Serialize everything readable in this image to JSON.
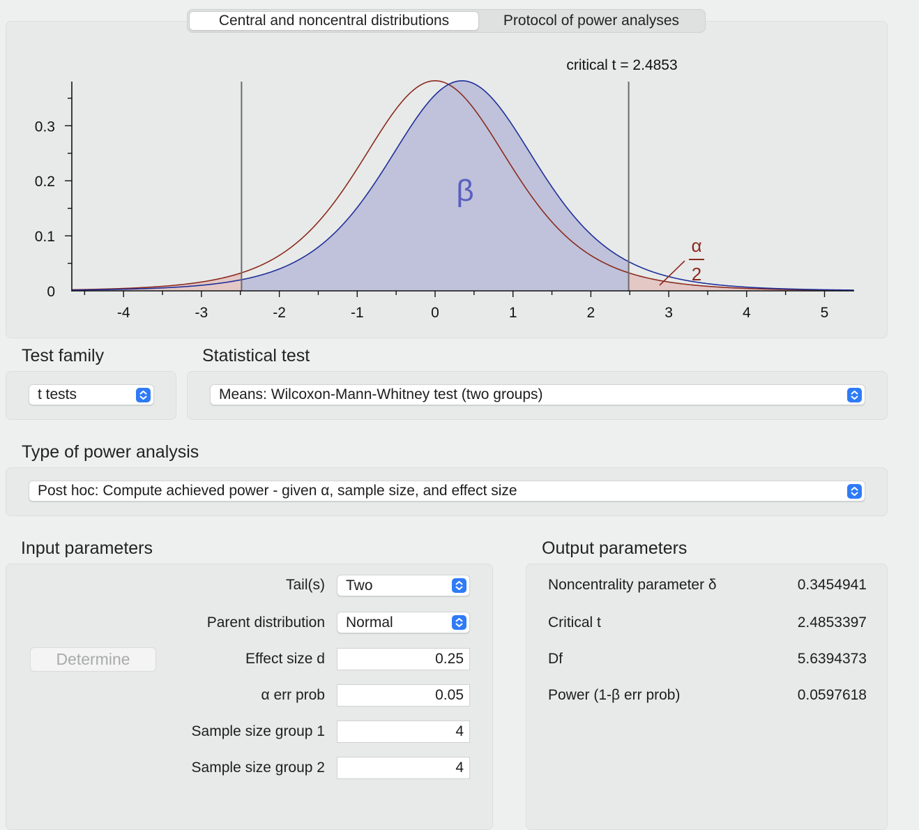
{
  "tabs": [
    {
      "label": "Central and noncentral distributions",
      "active": true
    },
    {
      "label": "Protocol of power analyses",
      "active": false
    }
  ],
  "chart": {
    "critical_label": "critical t = 2.4853",
    "beta_label": "β",
    "alpha_num": "α",
    "alpha_den": "2",
    "colors": {
      "central": "#8b2a1f",
      "noncentral": "#1f2f99",
      "beta_fill": "#bfc2da",
      "alpha_fill": "#e3c8c6",
      "beta_text": "#5a5fc0"
    }
  },
  "chart_data": {
    "type": "line",
    "title": "",
    "xlabel": "",
    "ylabel": "",
    "xlim": [
      -4.65,
      5.4
    ],
    "ylim": [
      0,
      0.38
    ],
    "x_ticks": [
      "-4",
      "-3",
      "-2",
      "-1",
      "0",
      "1",
      "2",
      "3",
      "4",
      "5"
    ],
    "y_ticks": [
      "0",
      "0.1",
      "0.2",
      "0.3"
    ],
    "df": 5.6394373,
    "critical_t": 2.4853397,
    "noncentrality": 0.3454941,
    "series": [
      {
        "curve": "central t",
        "color": "#8b2a1f",
        "shift": 0
      },
      {
        "curve": "noncentral t",
        "color": "#1f2f99",
        "shift": 0.3454941
      }
    ],
    "critical_lines": [
      -2.4853,
      2.4853
    ]
  },
  "test_family": {
    "title": "Test family",
    "value": "t tests"
  },
  "statistical_test": {
    "title": "Statistical test",
    "value": "Means: Wilcoxon-Mann-Whitney test (two groups)"
  },
  "power_analysis": {
    "title": "Type of power analysis",
    "value": "Post hoc: Compute achieved power - given α, sample size, and effect size"
  },
  "input": {
    "title": "Input parameters",
    "determine_label": "Determine",
    "tails_label": "Tail(s)",
    "tails_value": "Two",
    "parent_label": "Parent distribution",
    "parent_value": "Normal",
    "effect_label": "Effect size d",
    "effect_value": "0.25",
    "alpha_label": "α err prob",
    "alpha_value": "0.05",
    "n1_label": "Sample size group 1",
    "n1_value": "4",
    "n2_label": "Sample size group 2",
    "n2_value": "4"
  },
  "output": {
    "title": "Output parameters",
    "rows": [
      {
        "label": "Noncentrality parameter δ",
        "value": "0.3454941"
      },
      {
        "label": "Critical t",
        "value": "2.4853397"
      },
      {
        "label": "Df",
        "value": "5.6394373"
      },
      {
        "label": "Power (1-β err prob)",
        "value": "0.0597618"
      }
    ]
  }
}
